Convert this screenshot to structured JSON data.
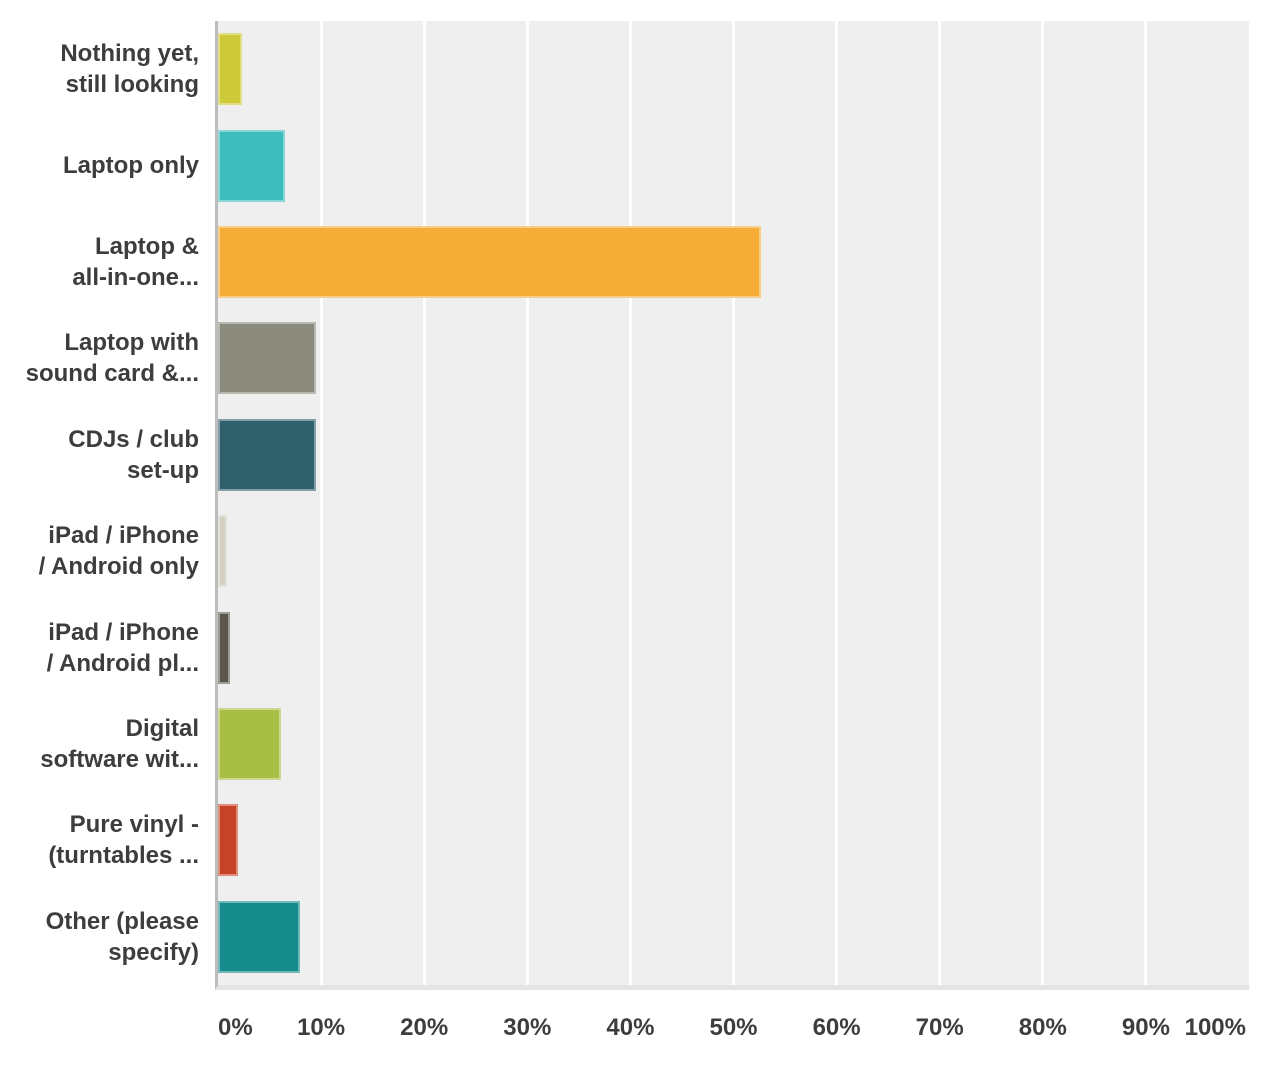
{
  "chart_data": {
    "type": "bar",
    "orientation": "horizontal",
    "title": "",
    "xlabel": "",
    "ylabel": "",
    "legend": "none",
    "grid": "vertical white gridlines every 10%",
    "plot_area_background": "#efefef",
    "xlim": [
      0,
      100
    ],
    "x_tick_step": 10,
    "x_tick_labels": [
      "0%",
      "10%",
      "20%",
      "30%",
      "40%",
      "50%",
      "60%",
      "70%",
      "80%",
      "90%",
      "100%"
    ],
    "categories": [
      "Nothing yet,\nstill looking",
      "Laptop only",
      "Laptop &\nall-in-one...",
      "Laptop with\nsound card &...",
      "CDJs / club\nset-up",
      "iPad / iPhone\n/ Android only",
      "iPad / iPhone\n/ Android pl...",
      "Digital\nsoftware wit...",
      "Pure vinyl -\n(turntables ...",
      "Other (please\nspecify)"
    ],
    "values": [
      2.3,
      6.5,
      52.7,
      9.5,
      9.5,
      0.9,
      1.2,
      6.1,
      1.9,
      8.0
    ],
    "bar_colors": [
      "#cec939",
      "#3dbdbe",
      "#f5ad37",
      "#8b8b7d",
      "#31606d",
      "#d3d0c2",
      "#5b584b",
      "#a8be45",
      "#c74327",
      "#168b8c"
    ]
  },
  "styles": {
    "page_background": "#ffffff",
    "plot_background": "#efefef",
    "gridline_color": "#ffffff",
    "axis_line_color": "#bdbdbd",
    "plot_bottom_border_color": "#e4e4e4",
    "text_color": "#3d3d3d"
  }
}
